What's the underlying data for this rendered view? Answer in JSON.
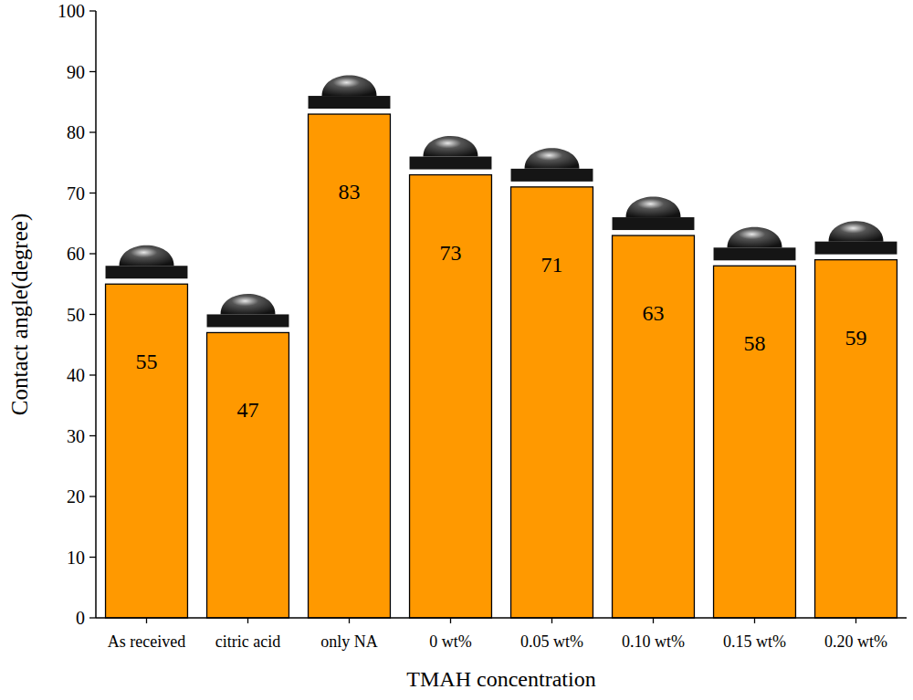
{
  "chart_data": {
    "type": "bar",
    "categories": [
      "As received",
      "citric acid",
      "only NA",
      "0 wt%",
      "0.05 wt%",
      "0.10 wt%",
      "0.15 wt%",
      "0.20 wt%"
    ],
    "values": [
      55,
      47,
      83,
      73,
      71,
      63,
      58,
      59
    ],
    "color": "#ff9900",
    "x_label": "TMAH concentration",
    "y_label": "Contact angle(degree)",
    "ylim": [
      0,
      100
    ],
    "yticks": [
      0,
      10,
      20,
      30,
      40,
      50,
      60,
      70,
      80,
      90,
      100
    ],
    "grid": false,
    "data_labels": true
  }
}
